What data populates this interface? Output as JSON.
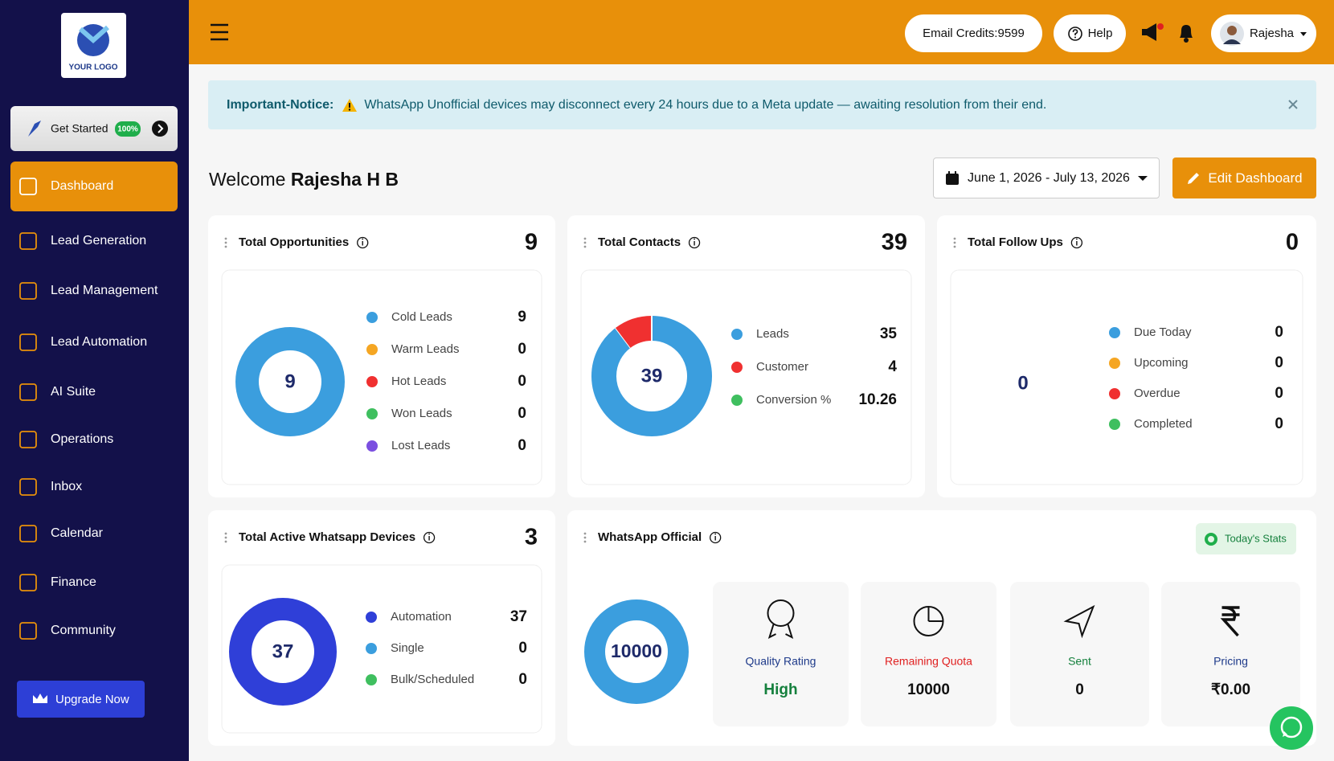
{
  "sidebar": {
    "logo": "YOUR LOGO",
    "get_started": "Get Started",
    "progress": "100%",
    "nav": [
      "Dashboard",
      "Lead Generation",
      "Lead Management",
      "Lead Automation",
      "AI Suite",
      "Operations",
      "Inbox",
      "Calendar",
      "Finance",
      "Community"
    ],
    "active": 0,
    "upgrade": "Upgrade Now"
  },
  "header": {
    "email_credits": "Email Credits:9599",
    "help": "Help",
    "user": "Rajesha"
  },
  "notice": {
    "label": "Important-Notice:",
    "text": "WhatsApp Unofficial devices may disconnect every 24 hours due to a Meta update — awaiting resolution from their end."
  },
  "welcome": {
    "greeting": "Welcome",
    "name": "Rajesha H B"
  },
  "date_range": "June 1, 2026 - July 13, 2026",
  "edit_button": "Edit Dashboard",
  "cards": [
    {
      "title": "Total Opportunities",
      "total": 9,
      "items": [
        {
          "name": "Cold Leads",
          "value": 9,
          "color": "#3b9ede"
        },
        {
          "name": "Warm Leads",
          "value": 0,
          "color": "#f5a623"
        },
        {
          "name": "Hot Leads",
          "value": 0,
          "color": "#f03030"
        },
        {
          "name": "Won Leads",
          "value": 0,
          "color": "#3fbf5f"
        },
        {
          "name": "Lost Leads",
          "value": 0,
          "color": "#7b4fe0"
        }
      ]
    },
    {
      "title": "Total Contacts",
      "total": 39,
      "items": [
        {
          "name": "Leads",
          "value": 35,
          "color": "#3b9ede"
        },
        {
          "name": "Customer",
          "value": 4,
          "color": "#f03030"
        },
        {
          "name": "Conversion %",
          "value": 10.26,
          "color": "#3fbf5f",
          "in_chart": false
        }
      ]
    },
    {
      "title": "Total Follow Ups",
      "total": 0,
      "items": [
        {
          "name": "Due Today",
          "value": 0,
          "color": "#3b9ede"
        },
        {
          "name": "Upcoming",
          "value": 0,
          "color": "#f5a623"
        },
        {
          "name": "Overdue",
          "value": 0,
          "color": "#f03030"
        },
        {
          "name": "Completed",
          "value": 0,
          "color": "#3fbf5f"
        }
      ]
    },
    {
      "title": "Total Active Whatsapp Devices",
      "total": 3,
      "items": [
        {
          "name": "Automation",
          "value": 37,
          "color": "#2f3fd8"
        },
        {
          "name": "Single",
          "value": 0,
          "color": "#3b9ede"
        },
        {
          "name": "Bulk/Scheduled",
          "value": 0,
          "color": "#3fbf5f"
        }
      ]
    }
  ],
  "whatsapp": {
    "title": "WhatsApp Official",
    "stats_badge": "Today's Stats",
    "ring_color": "#3b9ede",
    "tiles": [
      {
        "label": "Quality Rating",
        "value": "High",
        "label_color": "#1e3a8a",
        "value_color": "#15803d"
      },
      {
        "label": "Remaining Quota",
        "value": 10000,
        "label_color": "#e02020",
        "value_color": "#111111"
      },
      {
        "label": "Sent",
        "value": 0,
        "label_color": "#15803d",
        "value_color": "#111111"
      },
      {
        "label": "Pricing",
        "value": "₹0.00",
        "label_color": "#1e3a8a",
        "value_color": "#111111"
      }
    ]
  }
}
